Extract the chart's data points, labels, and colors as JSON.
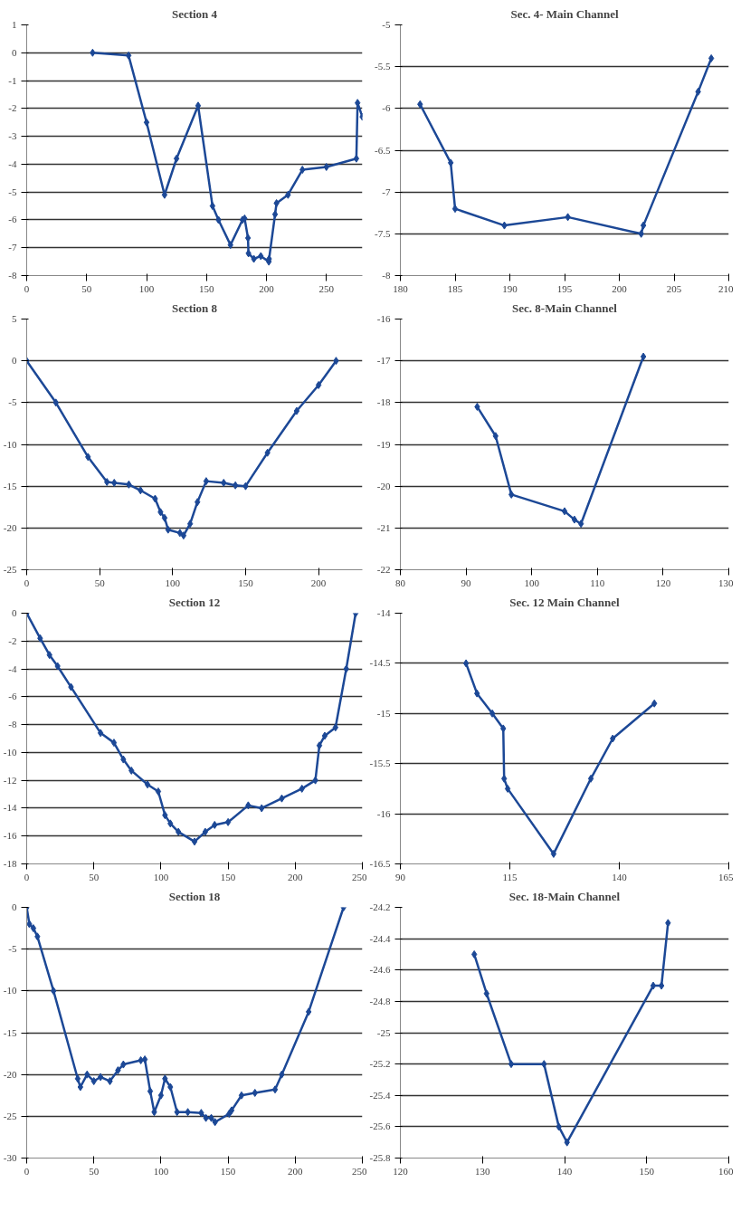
{
  "chart_data": [
    {
      "type": "line",
      "title": "Section 4",
      "x": [
        55,
        85,
        100,
        115,
        125,
        143,
        155,
        160,
        170,
        180,
        181.8,
        184.6,
        185,
        189.5,
        195.3,
        202,
        202.2,
        207.2,
        208.4,
        218,
        230,
        250,
        275,
        276,
        280
      ],
      "series": [
        {
          "color": "#1c4896",
          "values": [
            0,
            -0.1,
            -2.5,
            -5.1,
            -3.8,
            -1.9,
            -5.5,
            -6,
            -6.9,
            -6,
            -5.95,
            -6.65,
            -7.2,
            -7.4,
            -7.3,
            -7.5,
            -7.4,
            -5.8,
            -5.4,
            -5.1,
            -4.2,
            -4.1,
            -3.8,
            -1.8,
            -2.3
          ]
        }
      ],
      "xlim": [
        0,
        280
      ],
      "ylim": [
        -8,
        1
      ],
      "xticks": [
        0,
        50,
        100,
        150,
        200,
        250
      ],
      "yticks": [
        1,
        0,
        -1,
        -2,
        -3,
        -4,
        -5,
        -6,
        -7,
        -8
      ],
      "grid": "y",
      "marker": "diamond",
      "line_style": "solid"
    },
    {
      "type": "line",
      "title": "Sec. 4- Main Channel",
      "x": [
        181.8,
        184.6,
        185,
        189.5,
        195.3,
        202,
        202.2,
        207.2,
        208.4
      ],
      "series": [
        {
          "color": "#1c4896",
          "values": [
            -5.95,
            -6.65,
            -7.2,
            -7.4,
            -7.3,
            -7.5,
            -7.4,
            -5.8,
            -5.4
          ]
        }
      ],
      "xlim": [
        180,
        210
      ],
      "ylim": [
        -8,
        -5
      ],
      "xticks": [
        180,
        185,
        190,
        195,
        200,
        205,
        210
      ],
      "yticks": [
        -5,
        -5.5,
        -6,
        -6.5,
        -7,
        -7.5,
        -8
      ],
      "grid": "y",
      "marker": "diamond",
      "line_style": "solid"
    },
    {
      "type": "line",
      "title": "Section 8",
      "x": [
        0,
        20,
        42,
        55,
        60,
        70,
        78,
        88,
        91.7,
        94.5,
        96.9,
        105,
        107.5,
        112,
        117,
        123,
        135,
        143,
        150,
        165,
        185,
        200,
        212
      ],
      "series": [
        {
          "color": "#1c4896",
          "values": [
            0,
            -5,
            -11.5,
            -14.5,
            -14.6,
            -14.8,
            -15.5,
            -16.5,
            -18.1,
            -18.8,
            -20.2,
            -20.6,
            -20.9,
            -19.5,
            -16.9,
            -14.4,
            -14.6,
            -14.9,
            -15,
            -11,
            -6,
            -2.9,
            0
          ]
        }
      ],
      "xlim": [
        0,
        230
      ],
      "ylim": [
        -25,
        5
      ],
      "xticks": [
        0,
        50,
        100,
        150,
        200
      ],
      "yticks": [
        5,
        0,
        -5,
        -10,
        -15,
        -20,
        -25
      ],
      "grid": "y",
      "marker": "diamond",
      "line_style": "solid"
    },
    {
      "type": "line",
      "title": "Sec. 8-Main Channel",
      "x": [
        91.7,
        94.5,
        96.9,
        105,
        106.5,
        107.5,
        117
      ],
      "series": [
        {
          "color": "#1c4896",
          "values": [
            -18.1,
            -18.8,
            -20.2,
            -20.6,
            -20.8,
            -20.9,
            -16.9
          ]
        }
      ],
      "xlim": [
        80,
        130
      ],
      "ylim": [
        -22,
        -16
      ],
      "xticks": [
        80,
        90,
        100,
        110,
        120,
        130
      ],
      "yticks": [
        -16,
        -17,
        -18,
        -19,
        -20,
        -21,
        -22
      ],
      "grid": "y",
      "marker": "diamond",
      "line_style": "solid"
    },
    {
      "type": "line",
      "title": "Section 12",
      "x": [
        0,
        10,
        17,
        23,
        33,
        55,
        65,
        72,
        78,
        90,
        98,
        103,
        107,
        113,
        125,
        133,
        140,
        150,
        165,
        175,
        190,
        205,
        215,
        218,
        222,
        230,
        238,
        245
      ],
      "series": [
        {
          "color": "#1c4896",
          "values": [
            0,
            -1.8,
            -3,
            -3.8,
            -5.3,
            -8.6,
            -9.3,
            -10.5,
            -11.3,
            -12.3,
            -12.8,
            -14.5,
            -15.1,
            -15.7,
            -16.4,
            -15.7,
            -15.2,
            -15,
            -13.8,
            -14,
            -13.3,
            -12.6,
            -12,
            -9.5,
            -8.8,
            -8.2,
            -4,
            0
          ]
        }
      ],
      "xlim": [
        0,
        250
      ],
      "ylim": [
        -18,
        0
      ],
      "xticks": [
        0,
        50,
        100,
        150,
        200,
        250
      ],
      "yticks": [
        0,
        -2,
        -4,
        -6,
        -8,
        -10,
        -12,
        -14,
        -16,
        -18
      ],
      "grid": "y",
      "marker": "diamond",
      "line_style": "solid"
    },
    {
      "type": "line",
      "title": "Sec. 12 Main Channel",
      "x": [
        105,
        107.5,
        111,
        113.5,
        113.7,
        114.5,
        125,
        133.5,
        138.5,
        148
      ],
      "series": [
        {
          "color": "#1c4896",
          "values": [
            -14.5,
            -14.8,
            -15,
            -15.15,
            -15.65,
            -15.75,
            -16.4,
            -15.65,
            -15.25,
            -14.9
          ]
        }
      ],
      "xlim": [
        90,
        165
      ],
      "ylim": [
        -16.5,
        -14
      ],
      "xticks": [
        90,
        115,
        140,
        165
      ],
      "yticks": [
        -14,
        -14.5,
        -15,
        -15.5,
        -16,
        -16.5
      ],
      "grid": "y",
      "marker": "diamond",
      "line_style": "solid"
    },
    {
      "type": "line",
      "title": "Section 18",
      "x": [
        0,
        2,
        5,
        8,
        20,
        38,
        40,
        45,
        50,
        55,
        62,
        68,
        72,
        85,
        88,
        92,
        95,
        100,
        103,
        107,
        112,
        120,
        130,
        133.5,
        137.5,
        140.3,
        150.8,
        152.6,
        160,
        170,
        185,
        190,
        210,
        236
      ],
      "series": [
        {
          "color": "#1c4896",
          "values": [
            0,
            -2,
            -2.5,
            -3.5,
            -10,
            -20.5,
            -21.5,
            -20,
            -20.8,
            -20.3,
            -20.8,
            -19.5,
            -18.8,
            -18.3,
            -18.2,
            -22,
            -24.5,
            -22.5,
            -20.5,
            -21.5,
            -24.5,
            -24.5,
            -24.6,
            -25.2,
            -25.2,
            -25.7,
            -24.7,
            -24.3,
            -22.5,
            -22.2,
            -21.8,
            -20,
            -12.5,
            0
          ]
        }
      ],
      "xlim": [
        0,
        250
      ],
      "ylim": [
        -30,
        0
      ],
      "xticks": [
        0,
        50,
        100,
        150,
        200,
        250
      ],
      "yticks": [
        0,
        -5,
        -10,
        -15,
        -20,
        -25,
        -30
      ],
      "grid": "y",
      "marker": "diamond",
      "line_style": "solid"
    },
    {
      "type": "line",
      "title": "Sec. 18-Main Channel",
      "x": [
        129,
        130.5,
        133.5,
        137.5,
        139.3,
        140.3,
        150.8,
        151.8,
        152.6
      ],
      "series": [
        {
          "color": "#1c4896",
          "values": [
            -24.5,
            -24.75,
            -25.2,
            -25.2,
            -25.6,
            -25.7,
            -24.7,
            -24.7,
            -24.3
          ]
        }
      ],
      "xlim": [
        120,
        160
      ],
      "ylim": [
        -25.8,
        -24.2
      ],
      "xticks": [
        120,
        130,
        140,
        150,
        160
      ],
      "yticks": [
        -24.2,
        -24.4,
        -24.6,
        -24.8,
        -25,
        -25.2,
        -25.4,
        -25.6,
        -25.8
      ],
      "grid": "y",
      "marker": "diamond",
      "line_style": "solid"
    }
  ]
}
